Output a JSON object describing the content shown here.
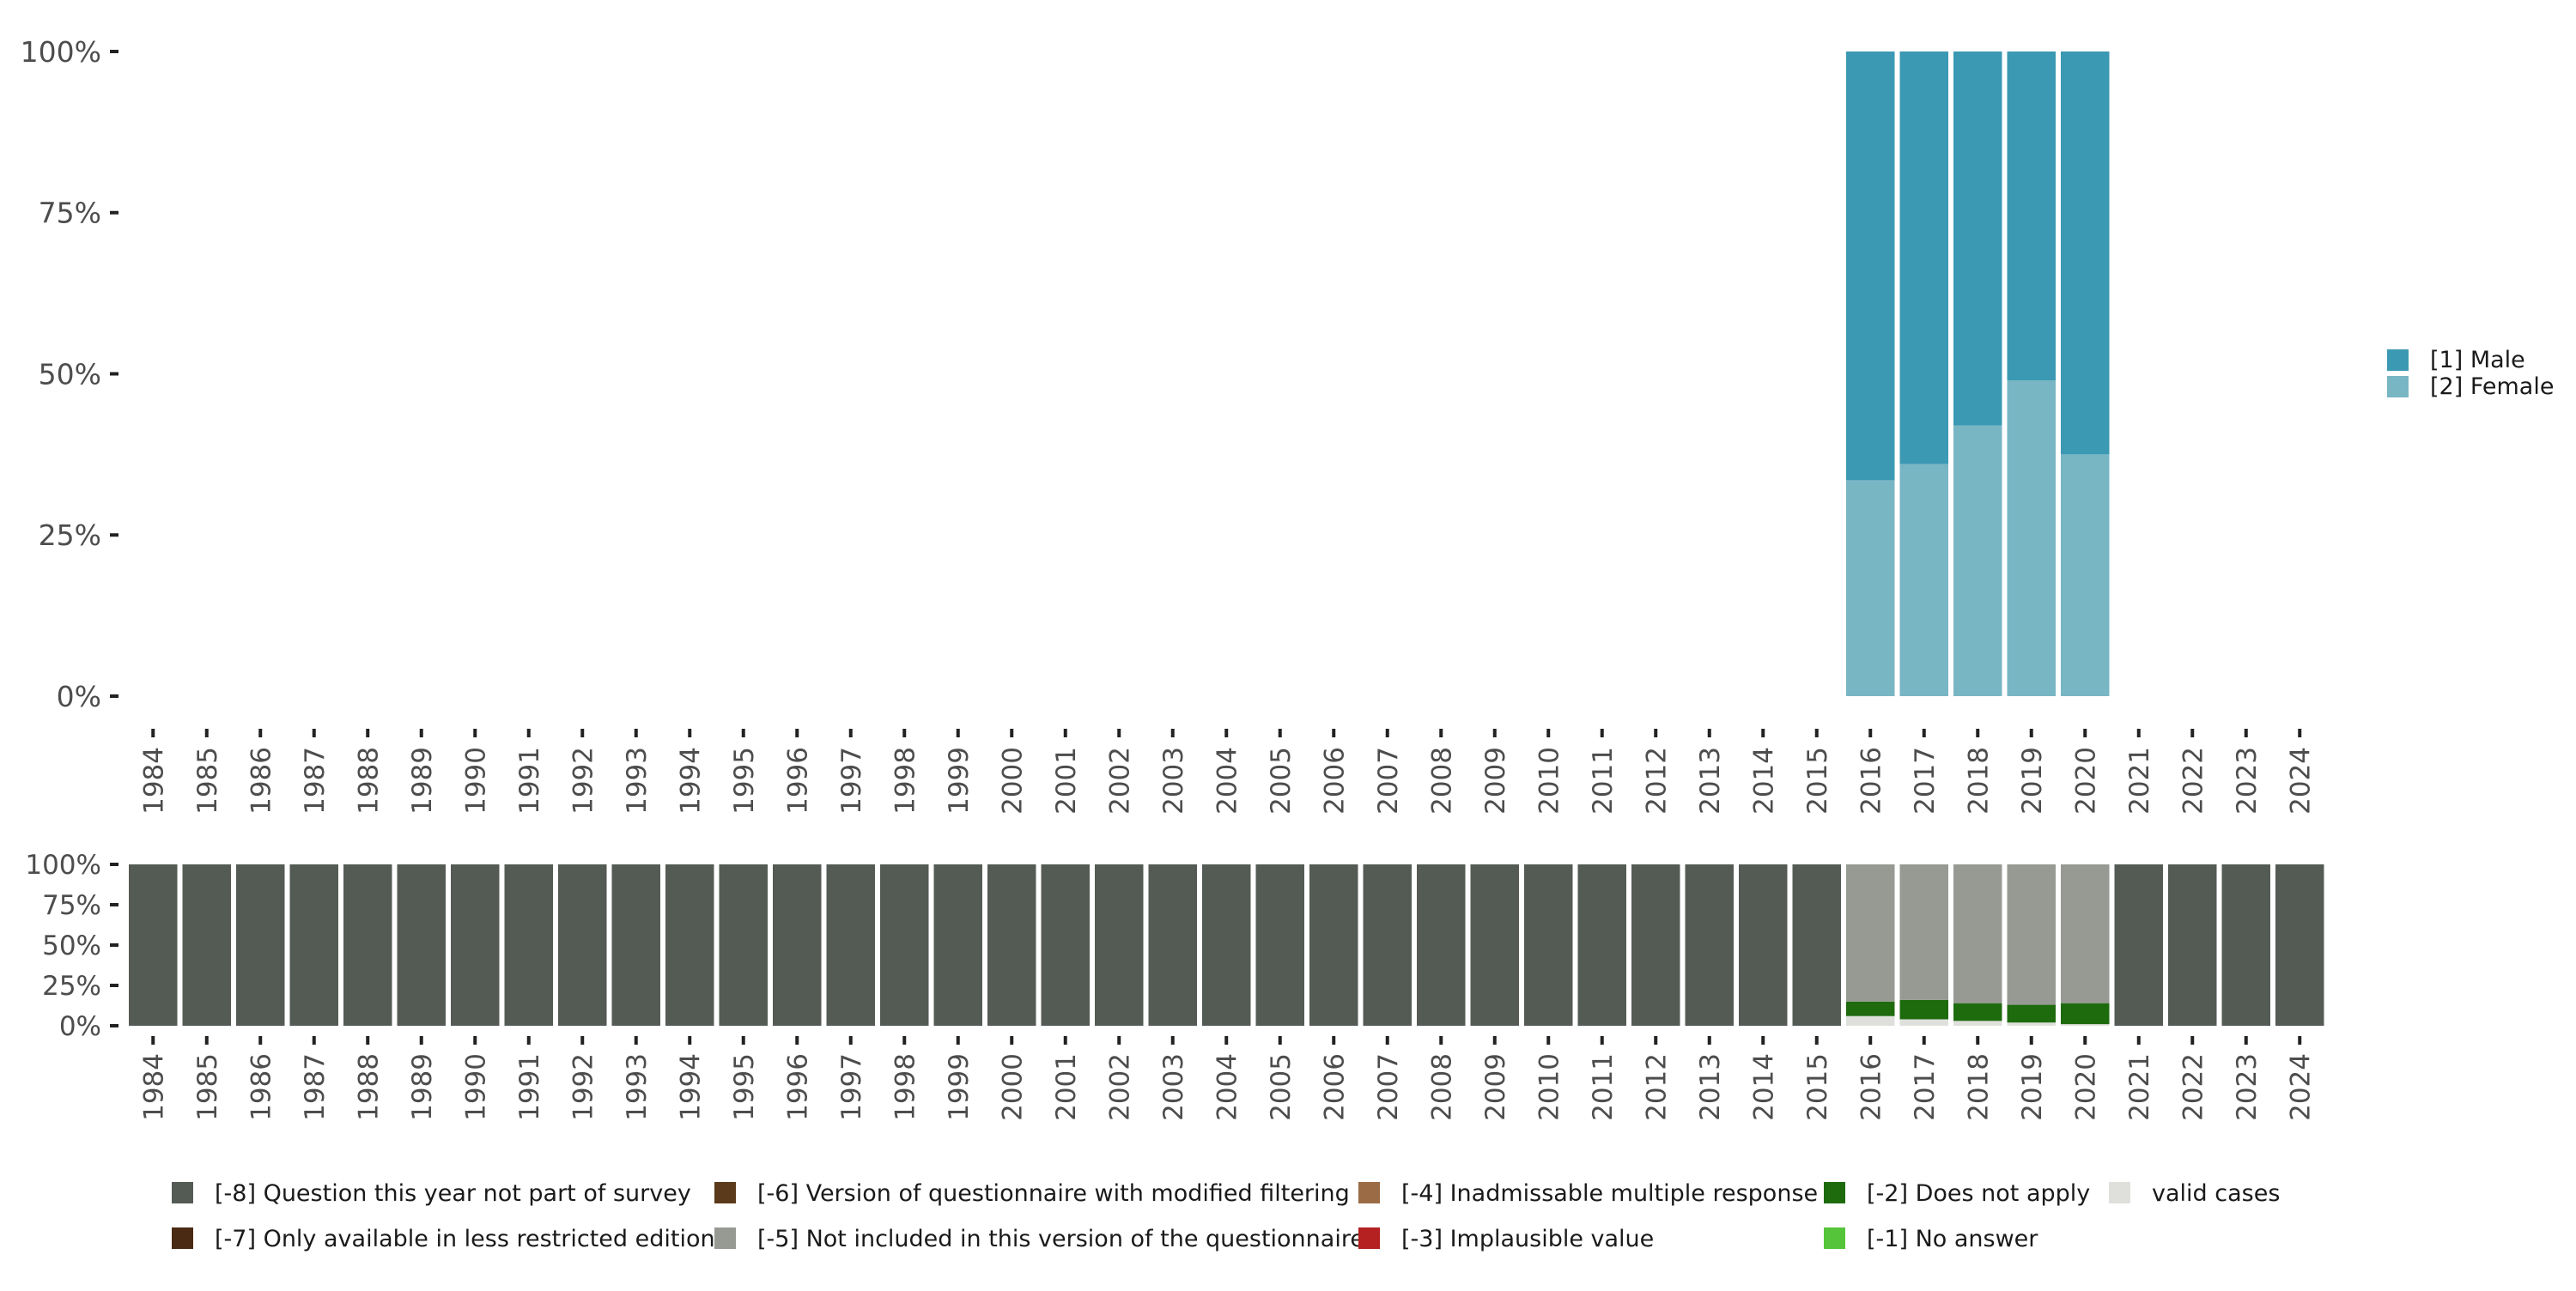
{
  "chart_data": [
    {
      "type": "bar",
      "stacked": true,
      "percent": true,
      "categories": [
        "1984",
        "1985",
        "1986",
        "1987",
        "1988",
        "1989",
        "1990",
        "1991",
        "1992",
        "1993",
        "1994",
        "1995",
        "1996",
        "1997",
        "1998",
        "1999",
        "2000",
        "2001",
        "2002",
        "2003",
        "2004",
        "2005",
        "2006",
        "2007",
        "2008",
        "2009",
        "2010",
        "2011",
        "2012",
        "2013",
        "2014",
        "2015",
        "2016",
        "2017",
        "2018",
        "2019",
        "2020",
        "2021",
        "2022",
        "2023",
        "2024"
      ],
      "yticks": [
        "0%",
        "25%",
        "50%",
        "75%",
        "100%"
      ],
      "ylim": [
        0,
        100
      ],
      "legend_position": "right",
      "series": [
        {
          "name": "[2] Female",
          "color": "#78b6c4",
          "values": [
            null,
            null,
            null,
            null,
            null,
            null,
            null,
            null,
            null,
            null,
            null,
            null,
            null,
            null,
            null,
            null,
            null,
            null,
            null,
            null,
            null,
            null,
            null,
            null,
            null,
            null,
            null,
            null,
            null,
            null,
            null,
            null,
            33.5,
            36,
            42,
            49,
            37.5,
            null,
            null,
            null,
            null
          ]
        },
        {
          "name": "[1] Male",
          "color": "#3b99b3",
          "values": [
            null,
            null,
            null,
            null,
            null,
            null,
            null,
            null,
            null,
            null,
            null,
            null,
            null,
            null,
            null,
            null,
            null,
            null,
            null,
            null,
            null,
            null,
            null,
            null,
            null,
            null,
            null,
            null,
            null,
            null,
            null,
            null,
            66.5,
            64,
            58,
            51,
            62.5,
            null,
            null,
            null,
            null
          ]
        }
      ]
    },
    {
      "type": "bar",
      "stacked": true,
      "percent": true,
      "categories": [
        "1984",
        "1985",
        "1986",
        "1987",
        "1988",
        "1989",
        "1990",
        "1991",
        "1992",
        "1993",
        "1994",
        "1995",
        "1996",
        "1997",
        "1998",
        "1999",
        "2000",
        "2001",
        "2002",
        "2003",
        "2004",
        "2005",
        "2006",
        "2007",
        "2008",
        "2009",
        "2010",
        "2011",
        "2012",
        "2013",
        "2014",
        "2015",
        "2016",
        "2017",
        "2018",
        "2019",
        "2020",
        "2021",
        "2022",
        "2023",
        "2024"
      ],
      "yticks": [
        "0%",
        "25%",
        "50%",
        "75%",
        "100%"
      ],
      "ylim": [
        0,
        100
      ],
      "legend_position": "bottom",
      "series": [
        {
          "name": "valid cases",
          "color": "#dfe0dc",
          "values": [
            0,
            0,
            0,
            0,
            0,
            0,
            0,
            0,
            0,
            0,
            0,
            0,
            0,
            0,
            0,
            0,
            0,
            0,
            0,
            0,
            0,
            0,
            0,
            0,
            0,
            0,
            0,
            0,
            0,
            0,
            0,
            0,
            6,
            4,
            3,
            2,
            1,
            0,
            0,
            0,
            0
          ]
        },
        {
          "name": "[-2] Does not apply",
          "color": "#1e6b0e",
          "values": [
            0,
            0,
            0,
            0,
            0,
            0,
            0,
            0,
            0,
            0,
            0,
            0,
            0,
            0,
            0,
            0,
            0,
            0,
            0,
            0,
            0,
            0,
            0,
            0,
            0,
            0,
            0,
            0,
            0,
            0,
            0,
            0,
            9,
            12,
            11,
            11,
            13,
            0,
            0,
            0,
            0
          ]
        },
        {
          "name": "[-5] Not included in this version of the questionnaire",
          "color": "#979a93",
          "values": [
            0,
            0,
            0,
            0,
            0,
            0,
            0,
            0,
            0,
            0,
            0,
            0,
            0,
            0,
            0,
            0,
            0,
            0,
            0,
            0,
            0,
            0,
            0,
            0,
            0,
            0,
            0,
            0,
            0,
            0,
            0,
            0,
            85,
            84,
            86,
            87,
            86,
            0,
            0,
            0,
            0
          ]
        },
        {
          "name": "[-8] Question this year not part of survey",
          "color": "#545b55",
          "values": [
            100,
            100,
            100,
            100,
            100,
            100,
            100,
            100,
            100,
            100,
            100,
            100,
            100,
            100,
            100,
            100,
            100,
            100,
            100,
            100,
            100,
            100,
            100,
            100,
            100,
            100,
            100,
            100,
            100,
            100,
            100,
            100,
            0,
            0,
            0,
            0,
            0,
            100,
            100,
            100,
            100
          ]
        }
      ],
      "legend": [
        {
          "name": "[-8] Question this year not part of survey",
          "color": "#545b55"
        },
        {
          "name": "[-6] Version of questionnaire with modified filtering",
          "color": "#5a3a1a"
        },
        {
          "name": "[-4] Inadmissable multiple response",
          "color": "#9a6b45"
        },
        {
          "name": "[-2] Does not apply",
          "color": "#1e6b0e"
        },
        {
          "name": "valid cases",
          "color": "#dfe0dc"
        },
        {
          "name": "[-7] Only available in less restricted edition",
          "color": "#4a2a12"
        },
        {
          "name": "[-5] Not included in this version of the questionnaire",
          "color": "#979a93"
        },
        {
          "name": "[-3] Implausible value",
          "color": "#b52020"
        },
        {
          "name": "[-1] No answer",
          "color": "#55c43a"
        }
      ]
    }
  ]
}
